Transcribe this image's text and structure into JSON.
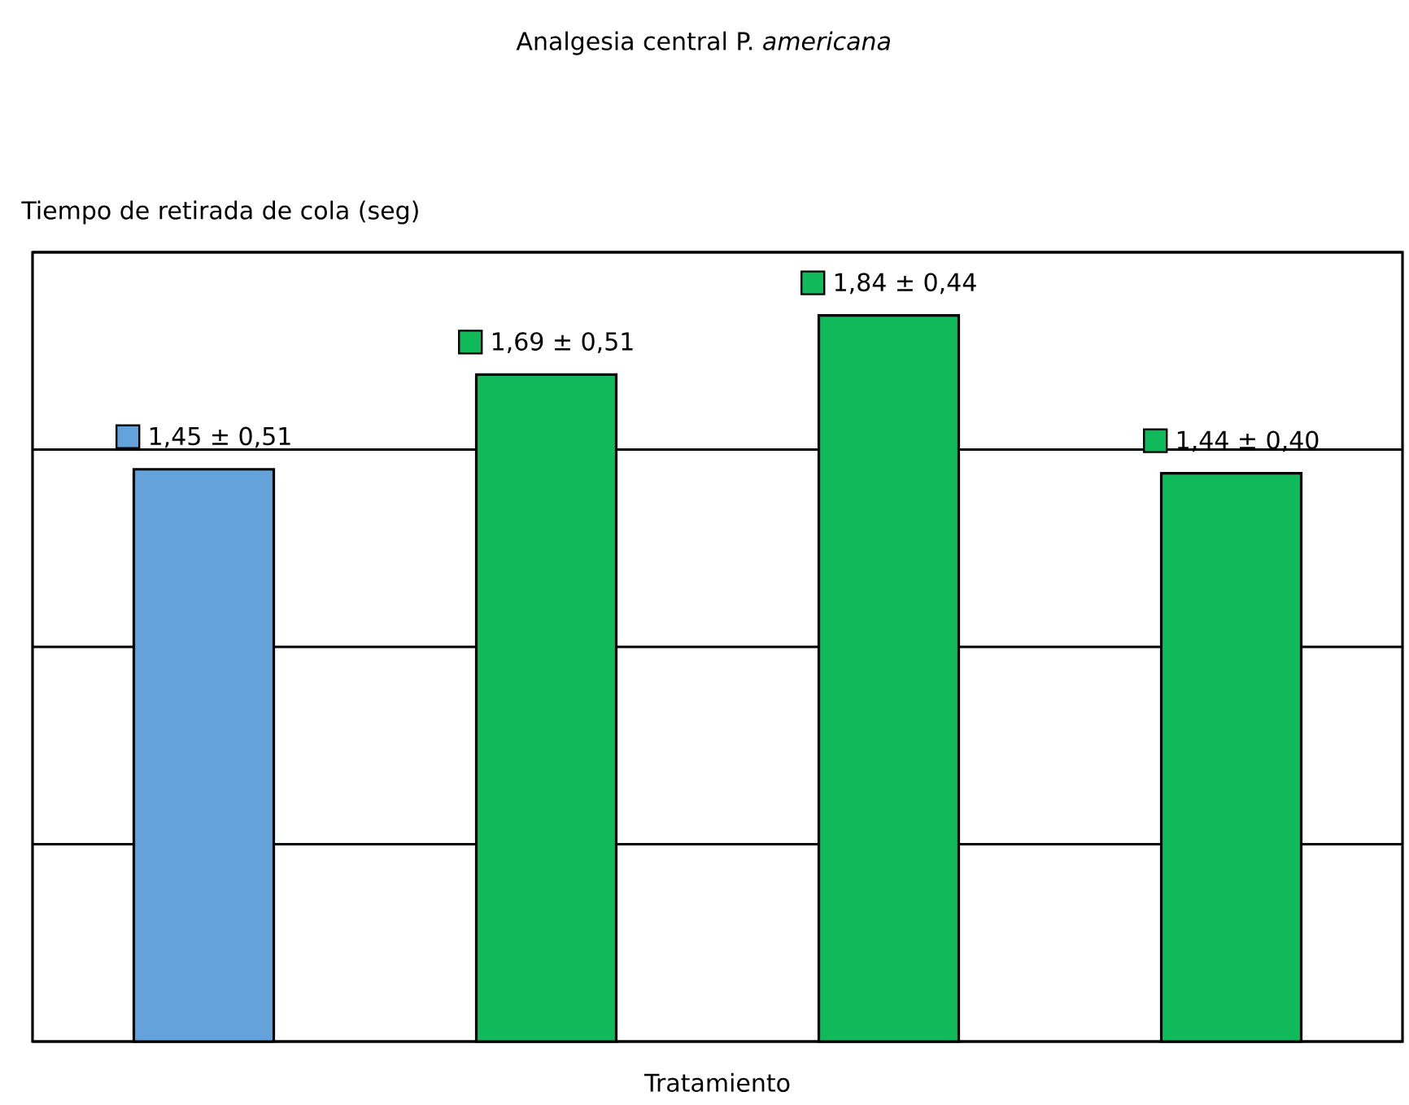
{
  "chart_data": {
    "type": "bar",
    "title": "Analgesia central P. *americana*",
    "ylabel": "Tiempo de retirada de cola (seg)",
    "xlabel": "Tratamiento",
    "categories": [
      null,
      null,
      null,
      null
    ],
    "values": [
      1.45,
      1.69,
      1.84,
      1.44
    ],
    "colors": [
      "#64a2dc",
      "#10b95a",
      "#10b95a",
      "#10b95a"
    ],
    "value_labels": [
      "1,45 ± 0,51",
      "1,69 ± 0,51",
      "1,84 ± 0,44",
      "1,44 ± 0,40"
    ],
    "ylim": [
      0,
      2
    ],
    "yticks": [
      {
        "value": 0,
        "label": null
      },
      {
        "value": 0.5,
        "label": null
      },
      {
        "value": 1,
        "label": null
      },
      {
        "value": 1.5,
        "label": null
      },
      {
        "value": 2,
        "label": null
      }
    ],
    "grid": "y"
  }
}
